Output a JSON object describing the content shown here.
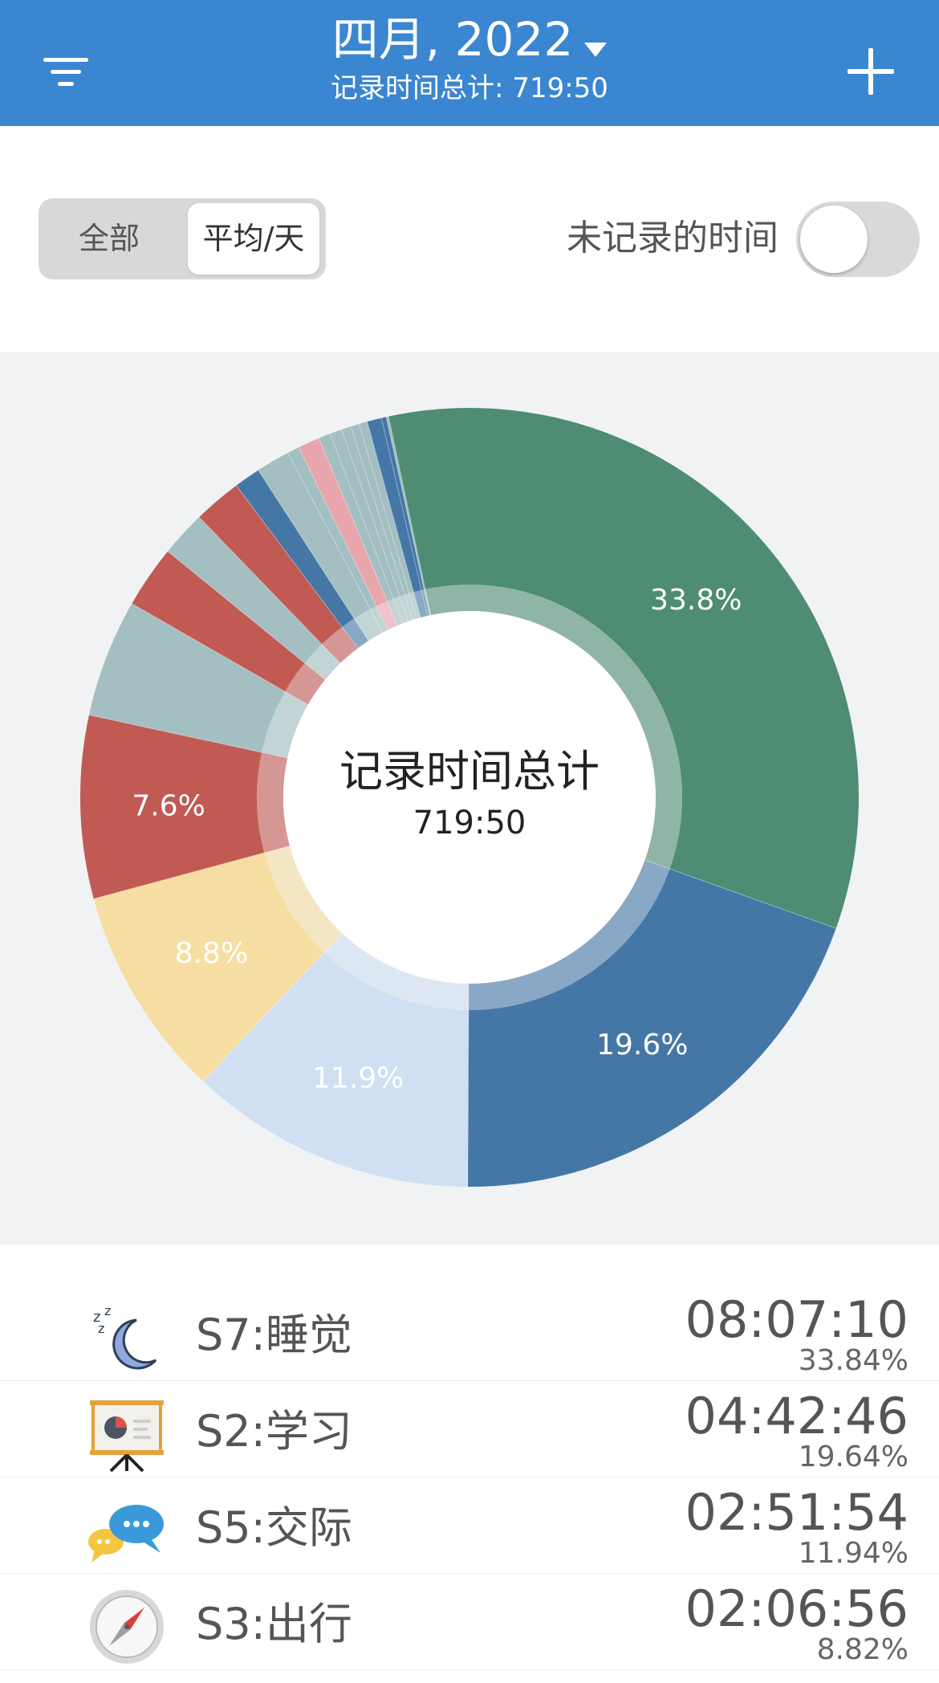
{
  "header": {
    "title": "四月, 2022",
    "subtitle": "记录时间总计: 719:50",
    "filter_icon": "filter-icon",
    "add_icon": "plus-icon"
  },
  "controls": {
    "segment_all": "全部",
    "segment_avg": "平均/天",
    "selected_segment": "平均/天",
    "unrecorded_label": "未记录的时间",
    "unrecorded_enabled": false
  },
  "chart_data": {
    "type": "pie",
    "center_label": "记录时间总计",
    "center_value": "719:50",
    "slices": [
      {
        "value": 33.84,
        "label": "33.8%",
        "color": "#4e8c73"
      },
      {
        "value": 19.64,
        "label": "19.6%",
        "color": "#4577a6"
      },
      {
        "value": 11.94,
        "label": "11.9%",
        "color": "#d0dff2"
      },
      {
        "value": 8.82,
        "label": "8.8%",
        "color": "#f6dea2"
      },
      {
        "value": 7.6,
        "label": "7.6%",
        "color": "#c25a54"
      },
      {
        "value": 4.9,
        "label": "",
        "color": "#a3bfc2"
      },
      {
        "value": 2.6,
        "label": "",
        "color": "#c25a54"
      },
      {
        "value": 1.9,
        "label": "",
        "color": "#a3bfc2"
      },
      {
        "value": 2.0,
        "label": "",
        "color": "#c25a54"
      },
      {
        "value": 1.1,
        "label": "",
        "color": "#4577a6"
      },
      {
        "value": 1.4,
        "label": "",
        "color": "#a3bfc2"
      },
      {
        "value": 0.5,
        "label": "",
        "color": "#a3bfc2"
      },
      {
        "value": 0.9,
        "label": "",
        "color": "#e9a5ac"
      },
      {
        "value": 0.5,
        "label": "",
        "color": "#a3bfc2"
      },
      {
        "value": 0.5,
        "label": "",
        "color": "#a3bfc2"
      },
      {
        "value": 0.4,
        "label": "",
        "color": "#a3bfc2"
      },
      {
        "value": 0.35,
        "label": "",
        "color": "#a3bfc2"
      },
      {
        "value": 0.35,
        "label": "",
        "color": "#a3bfc2"
      },
      {
        "value": 0.6,
        "label": "",
        "color": "#4577a6"
      },
      {
        "value": 0.2,
        "label": "",
        "color": "#4577a6"
      },
      {
        "value": 0.1,
        "label": "",
        "color": "#a3bfc2"
      }
    ]
  },
  "list": [
    {
      "name": "S7:睡觉",
      "time": "08:07:10",
      "percent": "33.84%",
      "icon": "sleep-moon-icon"
    },
    {
      "name": "S2:学习",
      "time": "04:42:46",
      "percent": "19.64%",
      "icon": "presentation-board-icon"
    },
    {
      "name": "S5:交际",
      "time": "02:51:54",
      "percent": "11.94%",
      "icon": "chat-bubbles-icon"
    },
    {
      "name": "S3:出行",
      "time": "02:06:56",
      "percent": "8.82%",
      "icon": "compass-icon"
    }
  ]
}
